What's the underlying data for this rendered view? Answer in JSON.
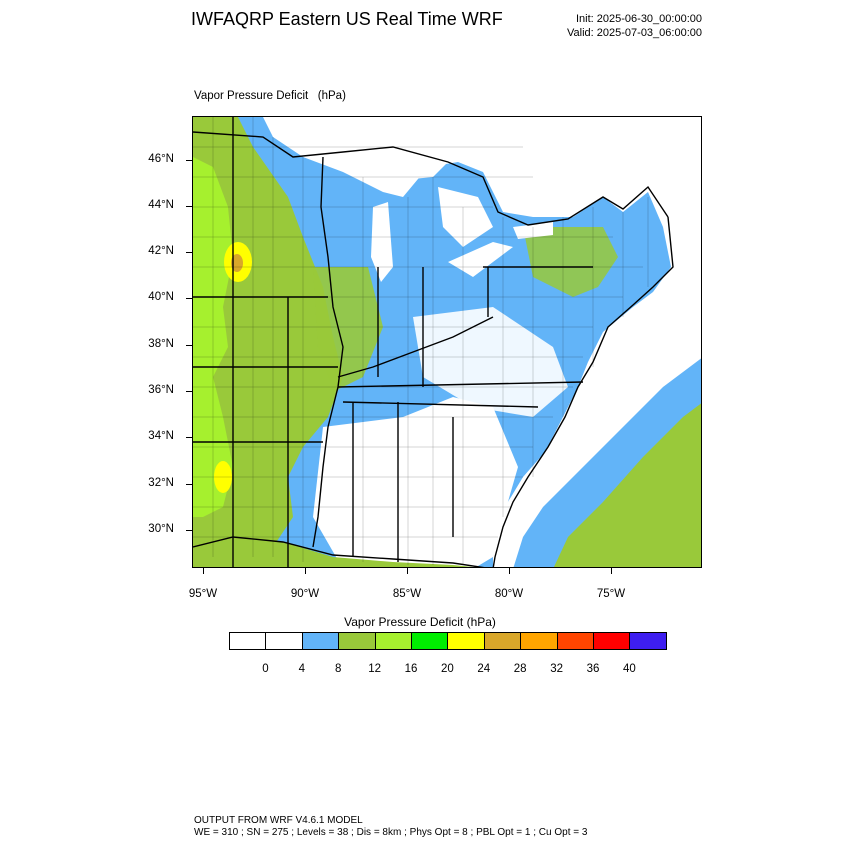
{
  "header": {
    "title": "IWFAQRP Eastern US Real Time WRF",
    "init": "Init: 2025-06-30_00:00:00",
    "valid": "Valid: 2025-07-03_06:00:00"
  },
  "map": {
    "field_title": "Vapor Pressure Deficit   (hPa)",
    "lat_labels": [
      "46°N",
      "44°N",
      "42°N",
      "40°N",
      "38°N",
      "36°N",
      "34°N",
      "32°N",
      "30°N"
    ],
    "lon_labels": [
      "95°W",
      "90°W",
      "85°W",
      "80°W",
      "75°W"
    ],
    "colors": {
      "ocean_white": "#ffffff",
      "blue_4_8": "#62b4f8",
      "olive_8_12": "#99c93a",
      "green_12_16": "#a6f02e",
      "yellow_20_24": "#ffff00",
      "gold_24_28": "#d9a72a",
      "border": "#000000"
    }
  },
  "legend": {
    "title": "Vapor Pressure Deficit   (hPa)",
    "labels": [
      "0",
      "4",
      "8",
      "12",
      "16",
      "20",
      "24",
      "28",
      "32",
      "36",
      "40"
    ],
    "colors": [
      "#ffffff",
      "#ffffff",
      "#62b4f8",
      "#99c93a",
      "#a6f02e",
      "#00ee00",
      "#ffff00",
      "#d9a72a",
      "#ffa500",
      "#ff4500",
      "#ff0000",
      "#3e1ef0"
    ]
  },
  "footer": {
    "line1": "OUTPUT FROM WRF V4.6.1 MODEL",
    "line2": "WE = 310 ; SN = 275 ; Levels = 38 ; Dis = 8km ; Phys Opt = 8 ; PBL Opt = 1 ; Cu Opt = 3"
  }
}
